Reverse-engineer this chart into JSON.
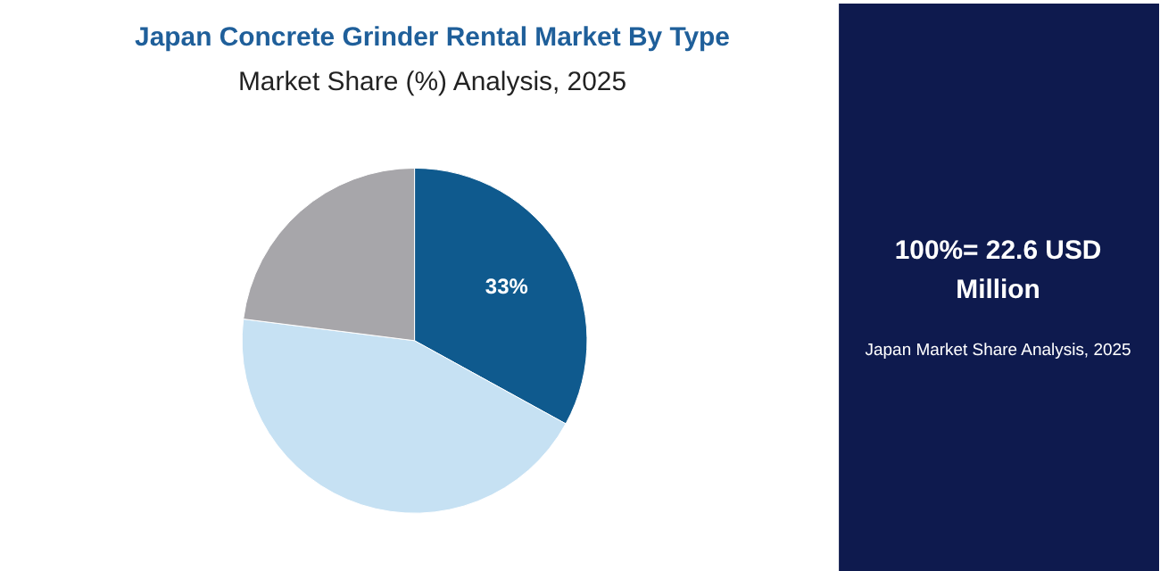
{
  "chart_data": {
    "type": "pie",
    "title": "Japan Concrete Grinder Rental Market By Type",
    "subtitle": "Market Share (%) Analysis, 2025",
    "categories": [
      null,
      null,
      null
    ],
    "values": [
      33,
      44,
      23
    ],
    "colors": [
      "#0f5a8e",
      "#c6e1f3",
      "#a7a6aa"
    ],
    "value_labels": [
      "33%",
      null,
      null
    ],
    "annotations": [
      "100%= 22.6 USD Million",
      "Japan Market Share Analysis, 2025"
    ]
  }
}
